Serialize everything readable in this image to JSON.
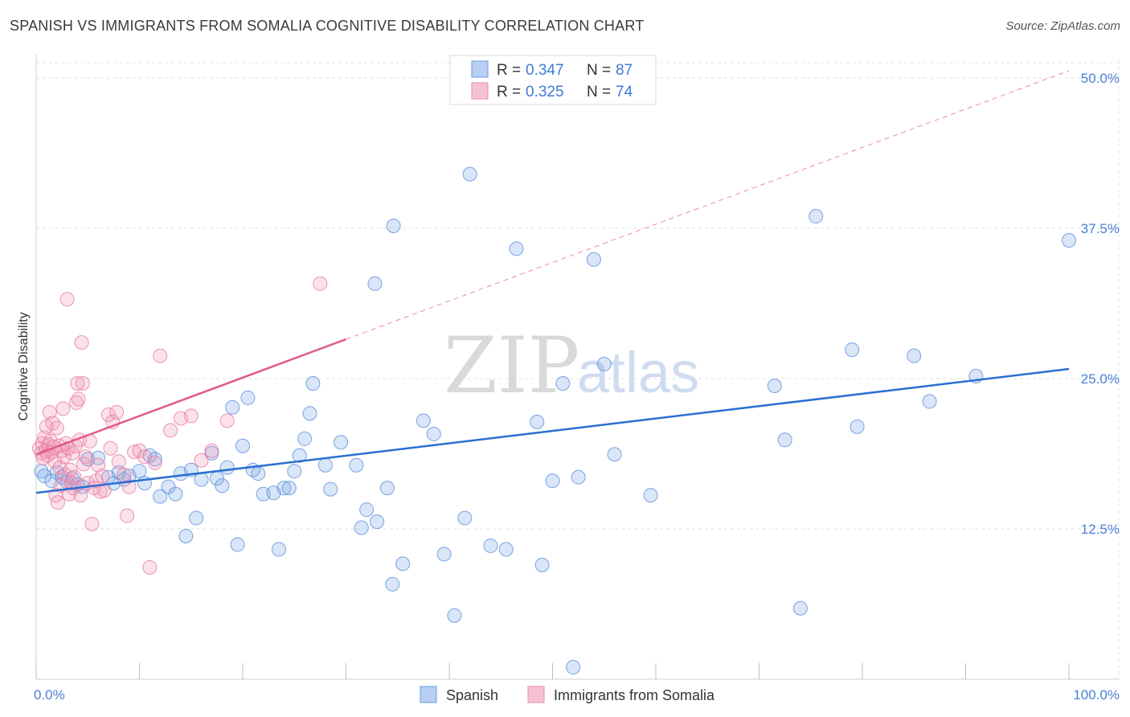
{
  "title": "SPANISH VS IMMIGRANTS FROM SOMALIA COGNITIVE DISABILITY CORRELATION CHART",
  "source": "Source: ZipAtlas.com",
  "watermark": {
    "zip": "ZIP",
    "atlas": "atlas"
  },
  "colors": {
    "blue": "#5b8fd9",
    "blue_fill": "rgba(120,165,230,0.28)",
    "blue_line": "#2a6fd1",
    "pink": "#e87aa0",
    "pink_fill": "rgba(240,150,180,0.28)",
    "pink_line": "#e05a88",
    "grid": "#e2e2e2",
    "axis_text": "#4a7fd4"
  },
  "legend": {
    "r_label": "R =",
    "n_label": "N =",
    "series": [
      {
        "r": "0.347",
        "n": "87"
      },
      {
        "r": "0.325",
        "n": "74"
      }
    ]
  },
  "chart_data": {
    "type": "scatter",
    "title": "SPANISH VS IMMIGRANTS FROM SOMALIA COGNITIVE DISABILITY CORRELATION CHART",
    "xlabel": "",
    "ylabel": "Cognitive Disability",
    "xlim": [
      0,
      100
    ],
    "ylim": [
      0,
      50
    ],
    "x_tick_labels": [
      "0.0%",
      "100.0%"
    ],
    "y_ticks": [
      12.5,
      25.0,
      37.5,
      50.0
    ],
    "y_tick_labels": [
      "12.5%",
      "25.0%",
      "37.5%",
      "50.0%"
    ],
    "grid": true,
    "series": [
      {
        "name": "Spanish",
        "r": 0.347,
        "n": 87,
        "trend": {
          "x0": 0,
          "y0": 15.5,
          "x1": 100,
          "y1": 25.8,
          "dashed_from": null
        },
        "points": [
          [
            0.5,
            17.3
          ],
          [
            0.8,
            16.9
          ],
          [
            1.5,
            16.5
          ],
          [
            2.0,
            17.2
          ],
          [
            2.5,
            16.8
          ],
          [
            3.0,
            16.4
          ],
          [
            3.5,
            16.7
          ],
          [
            4.0,
            16.2
          ],
          [
            4.5,
            16.0
          ],
          [
            5.0,
            18.3
          ],
          [
            6.0,
            18.4
          ],
          [
            7.0,
            16.8
          ],
          [
            7.5,
            16.3
          ],
          [
            8.0,
            17.2
          ],
          [
            8.5,
            16.6
          ],
          [
            9.0,
            16.9
          ],
          [
            10.0,
            17.3
          ],
          [
            10.5,
            16.3
          ],
          [
            11.0,
            18.6
          ],
          [
            11.5,
            18.3
          ],
          [
            12.0,
            15.2
          ],
          [
            12.8,
            16.0
          ],
          [
            13.5,
            15.4
          ],
          [
            14.0,
            17.1
          ],
          [
            14.5,
            11.9
          ],
          [
            15.0,
            17.4
          ],
          [
            15.5,
            13.4
          ],
          [
            16.0,
            16.6
          ],
          [
            17.0,
            18.8
          ],
          [
            17.5,
            16.7
          ],
          [
            18.0,
            16.1
          ],
          [
            18.5,
            17.6
          ],
          [
            19.0,
            22.6
          ],
          [
            19.5,
            11.2
          ],
          [
            20.0,
            19.4
          ],
          [
            20.5,
            23.4
          ],
          [
            21.0,
            17.4
          ],
          [
            21.5,
            17.1
          ],
          [
            22.0,
            15.4
          ],
          [
            23.0,
            15.5
          ],
          [
            23.5,
            10.8
          ],
          [
            24.0,
            15.9
          ],
          [
            24.5,
            15.9
          ],
          [
            25.0,
            17.3
          ],
          [
            25.5,
            18.6
          ],
          [
            26.0,
            20.0
          ],
          [
            26.5,
            22.1
          ],
          [
            26.8,
            24.6
          ],
          [
            28.0,
            17.8
          ],
          [
            28.5,
            15.8
          ],
          [
            29.5,
            19.7
          ],
          [
            31.0,
            17.8
          ],
          [
            31.5,
            12.6
          ],
          [
            32.0,
            14.1
          ],
          [
            33.0,
            13.1
          ],
          [
            34.0,
            15.9
          ],
          [
            34.5,
            7.9
          ],
          [
            35.5,
            9.6
          ],
          [
            37.5,
            21.5
          ],
          [
            38.5,
            20.4
          ],
          [
            39.5,
            10.4
          ],
          [
            40.5,
            5.3
          ],
          [
            41.5,
            13.4
          ],
          [
            42.0,
            42.0
          ],
          [
            44.0,
            11.1
          ],
          [
            45.5,
            10.8
          ],
          [
            46.5,
            35.8
          ],
          [
            48.5,
            21.4
          ],
          [
            49.0,
            9.5
          ],
          [
            50.0,
            16.5
          ],
          [
            51.0,
            24.6
          ],
          [
            52.0,
            1.0
          ],
          [
            52.5,
            16.8
          ],
          [
            54.0,
            34.9
          ],
          [
            55.0,
            26.2
          ],
          [
            56.0,
            18.7
          ],
          [
            32.8,
            32.9
          ],
          [
            34.6,
            37.7
          ],
          [
            59.5,
            15.3
          ],
          [
            71.5,
            24.4
          ],
          [
            72.5,
            19.9
          ],
          [
            74.0,
            5.9
          ],
          [
            75.5,
            38.5
          ],
          [
            79.0,
            27.4
          ],
          [
            79.5,
            21.0
          ],
          [
            85.0,
            26.9
          ],
          [
            86.5,
            23.1
          ],
          [
            91.0,
            25.2
          ],
          [
            100.0,
            36.5
          ]
        ]
      },
      {
        "name": "Immigrants from Somalia",
        "r": 0.325,
        "n": 74,
        "trend": {
          "x0": 0,
          "y0": 18.7,
          "x1": 100,
          "y1": 50.6,
          "solid_until": 30
        },
        "points": [
          [
            0.3,
            19.2
          ],
          [
            0.5,
            18.8
          ],
          [
            0.6,
            19.6
          ],
          [
            0.7,
            18.4
          ],
          [
            0.8,
            20.1
          ],
          [
            0.9,
            19.0
          ],
          [
            1.0,
            21.0
          ],
          [
            1.1,
            18.6
          ],
          [
            1.2,
            19.5
          ],
          [
            1.3,
            22.2
          ],
          [
            1.4,
            19.8
          ],
          [
            1.5,
            18.9
          ],
          [
            1.6,
            21.3
          ],
          [
            1.7,
            19.3
          ],
          [
            1.8,
            18.1
          ],
          [
            1.9,
            15.3
          ],
          [
            2.0,
            20.9
          ],
          [
            2.1,
            14.7
          ],
          [
            2.2,
            19.4
          ],
          [
            2.3,
            17.6
          ],
          [
            2.4,
            16.1
          ],
          [
            2.5,
            19.0
          ],
          [
            2.6,
            22.5
          ],
          [
            2.7,
            18.5
          ],
          [
            2.8,
            17.0
          ],
          [
            2.9,
            19.6
          ],
          [
            3.0,
            31.6
          ],
          [
            3.1,
            19.2
          ],
          [
            3.2,
            15.4
          ],
          [
            3.3,
            17.4
          ],
          [
            3.4,
            16.3
          ],
          [
            3.5,
            18.8
          ],
          [
            3.6,
            15.9
          ],
          [
            3.7,
            16.8
          ],
          [
            3.8,
            19.4
          ],
          [
            3.9,
            23.0
          ],
          [
            4.0,
            24.6
          ],
          [
            4.1,
            23.3
          ],
          [
            4.2,
            19.9
          ],
          [
            4.3,
            15.3
          ],
          [
            4.4,
            28.0
          ],
          [
            4.5,
            24.6
          ],
          [
            4.6,
            17.9
          ],
          [
            4.8,
            18.5
          ],
          [
            5.0,
            16.3
          ],
          [
            5.2,
            19.8
          ],
          [
            5.4,
            12.9
          ],
          [
            5.6,
            15.9
          ],
          [
            5.8,
            16.5
          ],
          [
            6.0,
            17.8
          ],
          [
            6.2,
            15.6
          ],
          [
            6.4,
            16.9
          ],
          [
            6.6,
            15.7
          ],
          [
            7.0,
            22.0
          ],
          [
            7.2,
            19.2
          ],
          [
            7.4,
            21.4
          ],
          [
            7.8,
            22.2
          ],
          [
            8.0,
            18.1
          ],
          [
            8.5,
            17.0
          ],
          [
            8.8,
            13.6
          ],
          [
            9.0,
            16.0
          ],
          [
            9.5,
            18.9
          ],
          [
            10.0,
            19.0
          ],
          [
            10.5,
            18.5
          ],
          [
            11.0,
            9.3
          ],
          [
            11.5,
            18.0
          ],
          [
            12.0,
            26.9
          ],
          [
            13.0,
            20.7
          ],
          [
            14.0,
            21.7
          ],
          [
            15.0,
            21.9
          ],
          [
            16.0,
            18.2
          ],
          [
            17.0,
            19.0
          ],
          [
            18.5,
            21.5
          ],
          [
            27.5,
            32.9
          ]
        ]
      }
    ]
  },
  "bottom_legend": [
    {
      "label": "Spanish"
    },
    {
      "label": "Immigrants from Somalia"
    }
  ]
}
